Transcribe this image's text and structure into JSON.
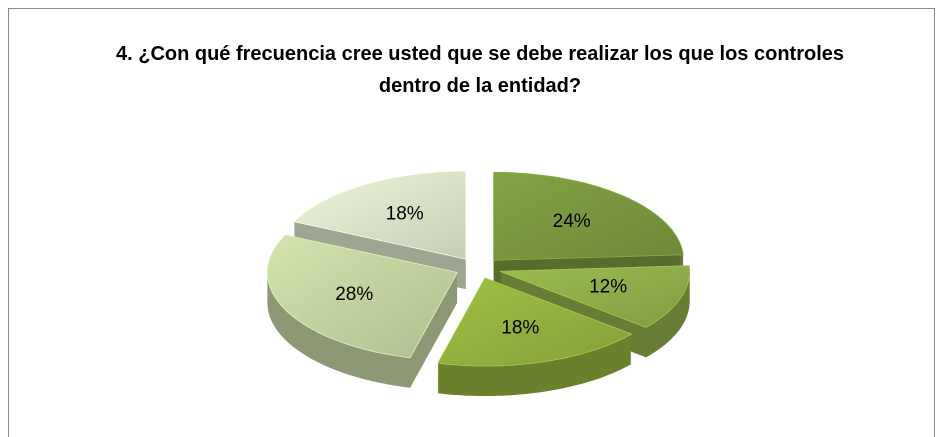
{
  "chart_data": {
    "type": "pie",
    "title": "4. ¿Con qué frecuencia cree usted que se debe realizar los que los controles dentro de la entidad?",
    "values": [
      24,
      12,
      18,
      28,
      18
    ],
    "value_labels": [
      "24%",
      "12%",
      "18%",
      "28%",
      "18%"
    ],
    "colors": [
      "#79973f",
      "#8fae4a",
      "#93b23f",
      "#c3d3a0",
      "#dbe5c9"
    ]
  }
}
